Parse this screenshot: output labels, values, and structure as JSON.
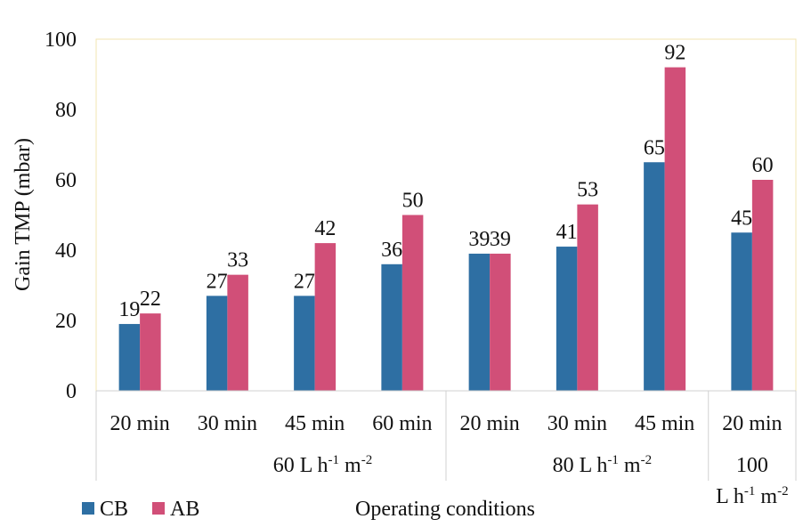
{
  "chart_data": {
    "type": "bar",
    "ylabel": "Gain TMP (mbar)",
    "xlabel": "Operating conditions",
    "ylim": [
      0,
      100
    ],
    "yticks": [
      "0",
      "20",
      "40",
      "60",
      "80",
      "100"
    ],
    "grid": false,
    "legend_position": "bottom-left",
    "categories": [
      "20 min",
      "30 min",
      "45 min",
      "60 min",
      "20 min",
      "30 min",
      "45 min",
      "20 min"
    ],
    "groups": [
      {
        "label_main": "60",
        "label_unit": "L h",
        "sup1": "-1",
        "label_unit2": " m",
        "sup2": "-2",
        "categories": 4
      },
      {
        "label_main": "80",
        "label_unit": "L h",
        "sup1": "-1",
        "label_unit2": " m",
        "sup2": "-2",
        "categories": 3
      },
      {
        "label_main": "100",
        "label_unit": "L h",
        "sup1": "-1",
        "label_unit2": " m",
        "sup2": "-2",
        "categories": 1
      }
    ],
    "series": [
      {
        "name": "CB",
        "color": "#2E6FA3",
        "values": [
          19,
          27,
          27,
          36,
          39,
          41,
          65,
          45
        ]
      },
      {
        "name": "AB",
        "color": "#D14F78",
        "values": [
          22,
          33,
          42,
          50,
          39,
          53,
          92,
          60
        ]
      }
    ],
    "data_labels": {
      "CB": [
        "19",
        "27",
        "27",
        "36",
        "39",
        "41",
        "65",
        "45"
      ],
      "AB": [
        "22",
        "33",
        "42",
        "50",
        "39",
        "53",
        "92",
        "60"
      ]
    }
  }
}
